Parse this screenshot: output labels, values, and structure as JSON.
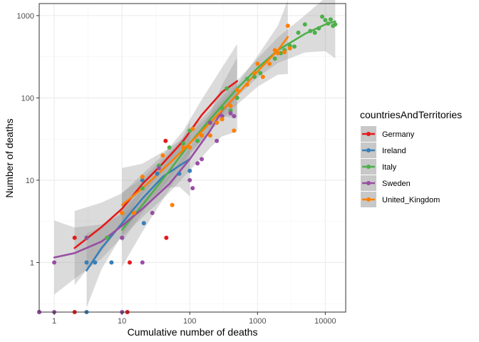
{
  "chart_data": {
    "type": "scatter",
    "xlabel": "Cumulative number of deaths",
    "ylabel": "Number of deaths",
    "x_scale": "log10",
    "y_scale": "log10",
    "xlim": [
      0.6,
      20000
    ],
    "ylim": [
      0.25,
      1400
    ],
    "x_ticks": [
      1,
      10,
      100,
      1000,
      10000
    ],
    "x_tick_labels": [
      "1",
      "10",
      "100",
      "1000",
      "10000"
    ],
    "y_ticks": [
      1,
      10,
      100,
      1000
    ],
    "y_tick_labels": [
      "1",
      "10",
      "100",
      "1000"
    ],
    "grid": true,
    "legend": {
      "title": "countriesAndTerritories",
      "placement": "right"
    },
    "series": [
      {
        "name": "Germany",
        "color": "#e41a1c",
        "points": [
          [
            0.6,
            0.25
          ],
          [
            2,
            0.25
          ],
          [
            12,
            0.25
          ],
          [
            2,
            2
          ],
          [
            13,
            1
          ],
          [
            44,
            30
          ],
          [
            45,
            2
          ]
        ],
        "fit": [
          [
            2,
            1.5
          ],
          [
            5,
            2.7
          ],
          [
            10,
            4.5
          ],
          [
            20,
            9
          ],
          [
            40,
            16
          ],
          [
            80,
            30
          ],
          [
            150,
            62
          ],
          [
            300,
            118
          ],
          [
            500,
            160
          ]
        ]
      },
      {
        "name": "Ireland",
        "color": "#377eb8",
        "points": [
          [
            0.6,
            0.25
          ],
          [
            3,
            0.25
          ],
          [
            3,
            1
          ],
          [
            4,
            1
          ],
          [
            7,
            1
          ],
          [
            10,
            2
          ],
          [
            20,
            10
          ],
          [
            21,
            3
          ],
          [
            33,
            12
          ],
          [
            70,
            12
          ],
          [
            100,
            13
          ]
        ],
        "fit": [
          [
            3,
            0.8
          ],
          [
            5,
            1.5
          ],
          [
            10,
            3
          ],
          [
            20,
            6
          ],
          [
            40,
            11
          ],
          [
            70,
            15
          ],
          [
            100,
            18
          ]
        ]
      },
      {
        "name": "Italy",
        "color": "#4daf4a",
        "points": [
          [
            3,
            2
          ],
          [
            6,
            2
          ],
          [
            10,
            4
          ],
          [
            20,
            8
          ],
          [
            35,
            15
          ],
          [
            50,
            25
          ],
          [
            80,
            28
          ],
          [
            100,
            40
          ],
          [
            130,
            30
          ],
          [
            200,
            50
          ],
          [
            300,
            75
          ],
          [
            350,
            130
          ],
          [
            400,
            70
          ],
          [
            500,
            100
          ],
          [
            700,
            170
          ],
          [
            900,
            180
          ],
          [
            1100,
            200
          ],
          [
            1800,
            300
          ],
          [
            2200,
            350
          ],
          [
            2500,
            380
          ],
          [
            3000,
            430
          ],
          [
            3500,
            420
          ],
          [
            4000,
            620
          ],
          [
            5000,
            780
          ],
          [
            6000,
            650
          ],
          [
            7000,
            620
          ],
          [
            8000,
            700
          ],
          [
            9000,
            970
          ],
          [
            10000,
            880
          ],
          [
            11000,
            800
          ],
          [
            12000,
            900
          ],
          [
            13000,
            750
          ],
          [
            14000,
            780
          ]
        ],
        "fit": [
          [
            10,
            2.5
          ],
          [
            20,
            5
          ],
          [
            50,
            13
          ],
          [
            100,
            28
          ],
          [
            200,
            55
          ],
          [
            500,
            130
          ],
          [
            1000,
            230
          ],
          [
            2000,
            380
          ],
          [
            5000,
            600
          ],
          [
            10000,
            780
          ],
          [
            14000,
            850
          ]
        ]
      },
      {
        "name": "Sweden",
        "color": "#984ea3",
        "points": [
          [
            0.6,
            0.25
          ],
          [
            1,
            0.25
          ],
          [
            10,
            0.25
          ],
          [
            1,
            1
          ],
          [
            3,
            2
          ],
          [
            10,
            2
          ],
          [
            20,
            1
          ],
          [
            28,
            4
          ],
          [
            35,
            14
          ],
          [
            100,
            10
          ],
          [
            110,
            8
          ],
          [
            130,
            16
          ],
          [
            150,
            18
          ],
          [
            200,
            50
          ],
          [
            250,
            30
          ],
          [
            300,
            60
          ],
          [
            400,
            65
          ],
          [
            450,
            60
          ]
        ],
        "fit": [
          [
            1,
            1.15
          ],
          [
            2,
            1.3
          ],
          [
            5,
            1.8
          ],
          [
            10,
            2.8
          ],
          [
            20,
            4.5
          ],
          [
            50,
            9
          ],
          [
            100,
            18
          ],
          [
            200,
            40
          ],
          [
            300,
            70
          ],
          [
            500,
            110
          ]
        ]
      },
      {
        "name": "United_Kingdom",
        "color": "#ff7f00",
        "points": [
          [
            10,
            4
          ],
          [
            15,
            4
          ],
          [
            20,
            11
          ],
          [
            40,
            20
          ],
          [
            55,
            5
          ],
          [
            80,
            25
          ],
          [
            100,
            25
          ],
          [
            110,
            42
          ],
          [
            150,
            35
          ],
          [
            200,
            35
          ],
          [
            250,
            50
          ],
          [
            300,
            55
          ],
          [
            400,
            80
          ],
          [
            450,
            40
          ],
          [
            500,
            125
          ],
          [
            700,
            145
          ],
          [
            900,
            200
          ],
          [
            1000,
            260
          ],
          [
            1200,
            180
          ],
          [
            1500,
            260
          ],
          [
            1800,
            380
          ],
          [
            2000,
            350
          ],
          [
            2500,
            360
          ],
          [
            2800,
            750
          ],
          [
            3000,
            400
          ]
        ],
        "fit": [
          [
            10,
            5
          ],
          [
            20,
            8
          ],
          [
            50,
            16
          ],
          [
            100,
            28
          ],
          [
            200,
            50
          ],
          [
            500,
            110
          ],
          [
            1000,
            210
          ],
          [
            2000,
            380
          ],
          [
            2800,
            550
          ]
        ]
      }
    ]
  }
}
